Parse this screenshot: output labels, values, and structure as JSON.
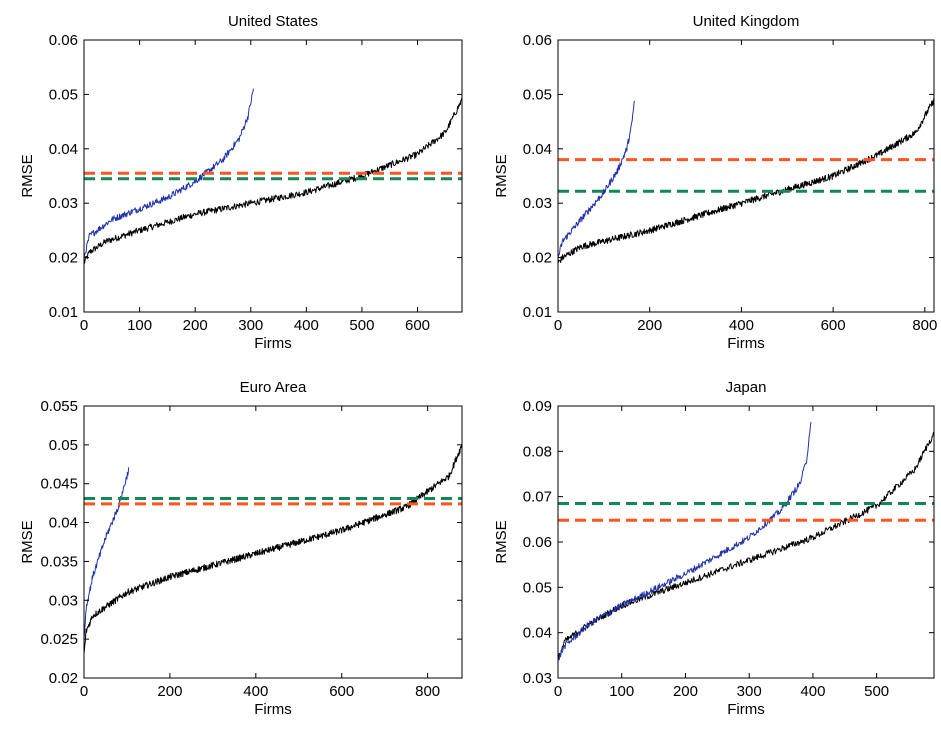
{
  "chart_data": [
    {
      "type": "line",
      "title": "United States",
      "xlabel": "Firms",
      "ylabel": "RMSE",
      "xlim": [
        0,
        680
      ],
      "ylim": [
        0.01,
        0.06
      ],
      "xticks": [
        0,
        100,
        200,
        300,
        400,
        500,
        600
      ],
      "yticks": [
        "0.01",
        "0.02",
        "0.03",
        "0.04",
        "0.05",
        "0.06"
      ],
      "grid": false,
      "series": [
        {
          "color": "#000000",
          "style": "solid",
          "x": [
            0,
            10,
            40,
            100,
            200,
            300,
            400,
            500,
            600,
            650,
            680
          ],
          "y": [
            0.019,
            0.021,
            0.023,
            0.025,
            0.028,
            0.03,
            0.032,
            0.035,
            0.039,
            0.043,
            0.049
          ]
        },
        {
          "color": "#2233aa",
          "style": "solid",
          "x": [
            0,
            10,
            50,
            100,
            150,
            200,
            250,
            280,
            295,
            305
          ],
          "y": [
            0.02,
            0.024,
            0.027,
            0.029,
            0.031,
            0.034,
            0.038,
            0.042,
            0.046,
            0.051
          ]
        },
        {
          "color": "#ff5520",
          "style": "dashed",
          "x": [
            0,
            680
          ],
          "y": [
            0.0355,
            0.0355
          ]
        },
        {
          "color": "#118855",
          "style": "dashed",
          "x": [
            0,
            680
          ],
          "y": [
            0.0345,
            0.0345
          ]
        }
      ]
    },
    {
      "type": "line",
      "title": "United Kingdom",
      "xlabel": "Firms",
      "ylabel": "RMSE",
      "xlim": [
        0,
        820
      ],
      "ylim": [
        0.01,
        0.06
      ],
      "xticks": [
        0,
        200,
        400,
        600,
        800
      ],
      "yticks": [
        "0.01",
        "0.02",
        "0.03",
        "0.04",
        "0.05",
        "0.06"
      ],
      "grid": false,
      "series": [
        {
          "color": "#000000",
          "style": "solid",
          "x": [
            0,
            10,
            50,
            200,
            400,
            600,
            700,
            780,
            820
          ],
          "y": [
            0.019,
            0.02,
            0.022,
            0.025,
            0.03,
            0.035,
            0.039,
            0.043,
            0.049
          ]
        },
        {
          "color": "#2233aa",
          "style": "solid",
          "x": [
            0,
            10,
            50,
            100,
            130,
            150,
            160,
            167
          ],
          "y": [
            0.02,
            0.023,
            0.027,
            0.032,
            0.036,
            0.04,
            0.044,
            0.049
          ]
        },
        {
          "color": "#ff5520",
          "style": "dashed",
          "x": [
            0,
            820
          ],
          "y": [
            0.038,
            0.038
          ]
        },
        {
          "color": "#118855",
          "style": "dashed",
          "x": [
            0,
            820
          ],
          "y": [
            0.0322,
            0.0322
          ]
        }
      ]
    },
    {
      "type": "line",
      "title": "Euro Area",
      "xlabel": "Firms",
      "ylabel": "RMSE",
      "xlim": [
        0,
        880
      ],
      "ylim": [
        0.02,
        0.055
      ],
      "xticks": [
        0,
        200,
        400,
        600,
        800
      ],
      "yticks": [
        "0.02",
        "0.025",
        "0.03",
        "0.035",
        "0.04",
        "0.045",
        "0.05",
        "0.055"
      ],
      "grid": false,
      "series": [
        {
          "color": "#000000",
          "style": "solid",
          "x": [
            0,
            5,
            20,
            100,
            200,
            400,
            600,
            750,
            850,
            880
          ],
          "y": [
            0.023,
            0.026,
            0.028,
            0.031,
            0.033,
            0.036,
            0.039,
            0.042,
            0.046,
            0.05
          ]
        },
        {
          "color": "#2233aa",
          "style": "solid",
          "x": [
            0,
            5,
            20,
            50,
            80,
            95,
            105
          ],
          "y": [
            0.025,
            0.029,
            0.033,
            0.038,
            0.042,
            0.045,
            0.047
          ]
        },
        {
          "color": "#ff5520",
          "style": "dashed",
          "x": [
            0,
            880
          ],
          "y": [
            0.0424,
            0.0424
          ]
        },
        {
          "color": "#118855",
          "style": "dashed",
          "x": [
            0,
            880
          ],
          "y": [
            0.0431,
            0.0431
          ]
        }
      ]
    },
    {
      "type": "line",
      "title": "Japan",
      "xlabel": "Firms",
      "ylabel": "RMSE",
      "xlim": [
        0,
        590
      ],
      "ylim": [
        0.03,
        0.09
      ],
      "xticks": [
        0,
        100,
        200,
        300,
        400,
        500
      ],
      "yticks": [
        "0.03",
        "0.04",
        "0.05",
        "0.06",
        "0.07",
        "0.08",
        "0.09"
      ],
      "grid": false,
      "series": [
        {
          "color": "#000000",
          "style": "solid",
          "x": [
            0,
            10,
            50,
            100,
            200,
            300,
            400,
            500,
            560,
            590
          ],
          "y": [
            0.034,
            0.038,
            0.042,
            0.046,
            0.051,
            0.056,
            0.061,
            0.068,
            0.076,
            0.084
          ]
        },
        {
          "color": "#2233aa",
          "style": "solid",
          "x": [
            0,
            10,
            50,
            100,
            200,
            300,
            350,
            380,
            390,
            397
          ],
          "y": [
            0.034,
            0.037,
            0.042,
            0.046,
            0.053,
            0.061,
            0.067,
            0.073,
            0.078,
            0.087
          ]
        },
        {
          "color": "#ff5520",
          "style": "dashed",
          "x": [
            0,
            590
          ],
          "y": [
            0.0648,
            0.0648
          ]
        },
        {
          "color": "#118855",
          "style": "dashed",
          "x": [
            0,
            590
          ],
          "y": [
            0.0685,
            0.0685
          ]
        }
      ]
    }
  ]
}
